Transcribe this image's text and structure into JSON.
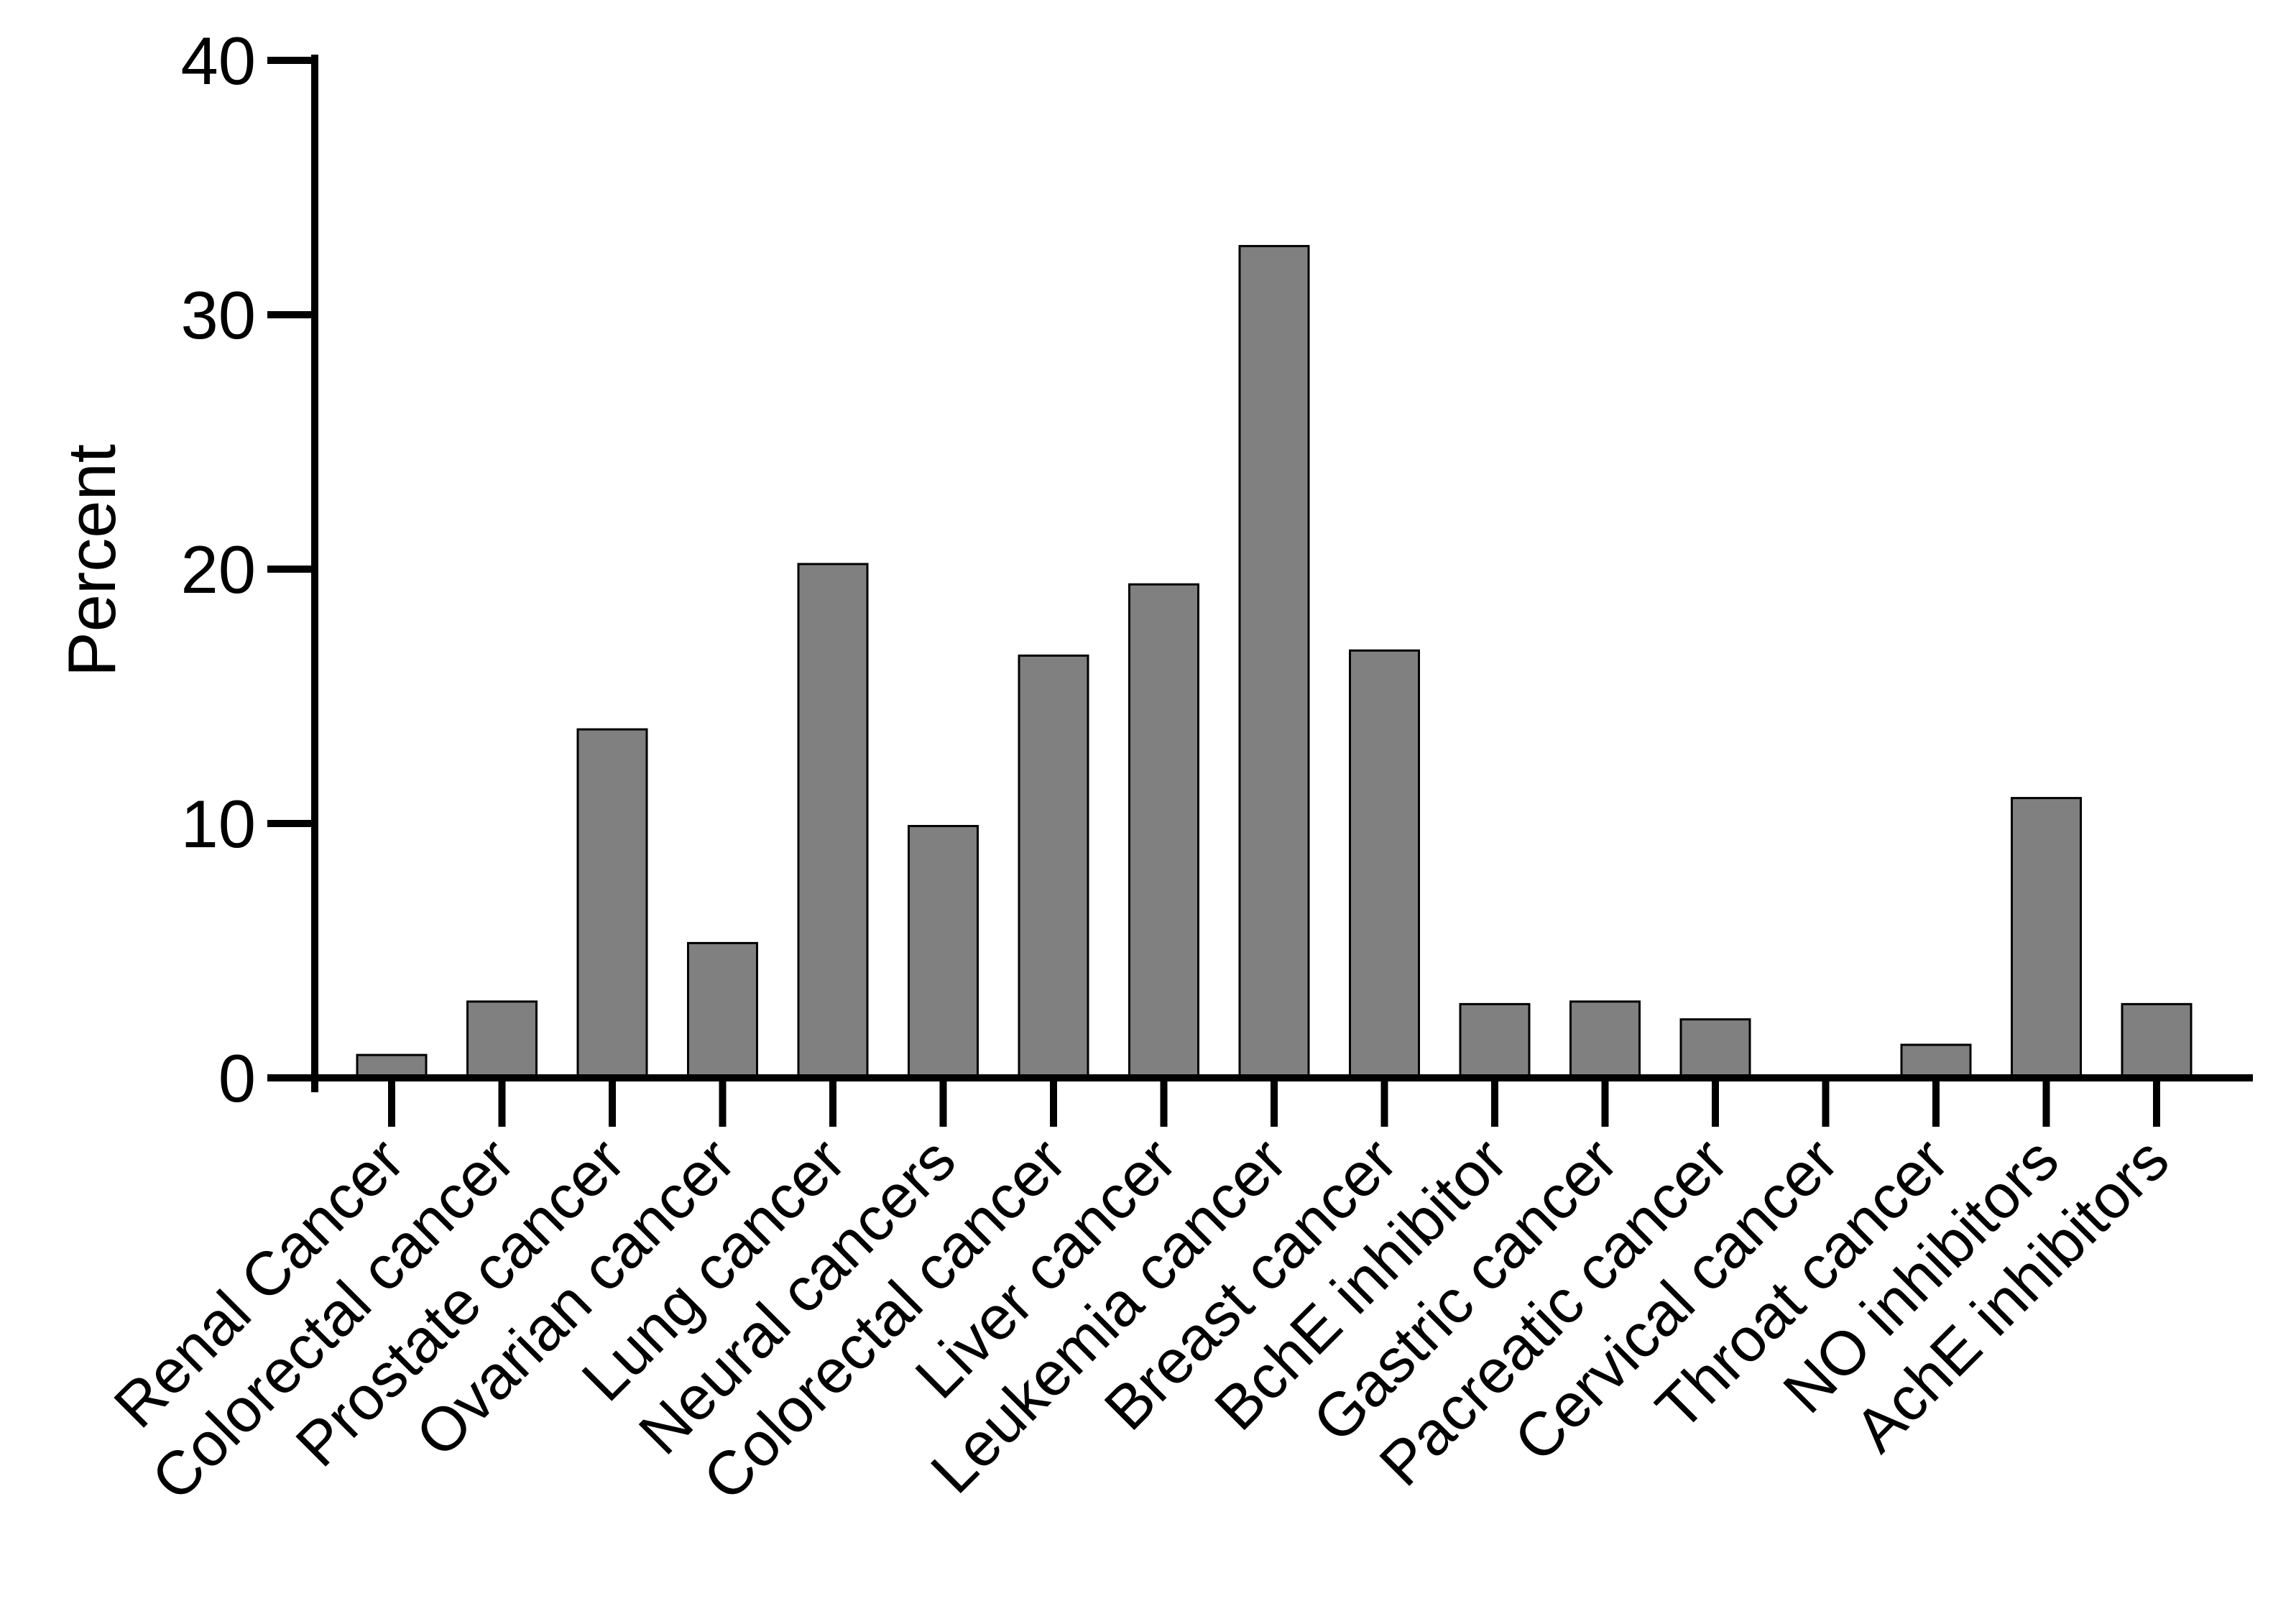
{
  "chart_data": {
    "type": "bar",
    "title": "",
    "xlabel": "",
    "ylabel": "Percent",
    "ylim": [
      0,
      40
    ],
    "yticks": [
      0,
      10,
      20,
      30,
      40
    ],
    "grid": false,
    "legend": "none",
    "colors": {
      "bar_fill": "#808080",
      "bar_stroke": "#000000",
      "axis": "#000000"
    },
    "categories": [
      "Renal Cancer",
      "Colorectal cancer",
      "Prostate cancer",
      "Ovarian cancer",
      "Lung cancer",
      "Neural cancers",
      "Colorectal cancer",
      "Liver cancer",
      "Leukemia cancer",
      "Breast cancer",
      "BchE inhibitor",
      "Gastric cancer",
      "Pacreatic cancer",
      "Cervical cancer",
      "Throat cancer",
      "NO inhibitors",
      "AchE inhibitors"
    ],
    "values": [
      0.9,
      3.0,
      13.7,
      5.3,
      20.2,
      9.9,
      16.6,
      19.4,
      32.7,
      16.8,
      2.9,
      3.0,
      2.3,
      0,
      1.3,
      11.0,
      2.9
    ]
  }
}
